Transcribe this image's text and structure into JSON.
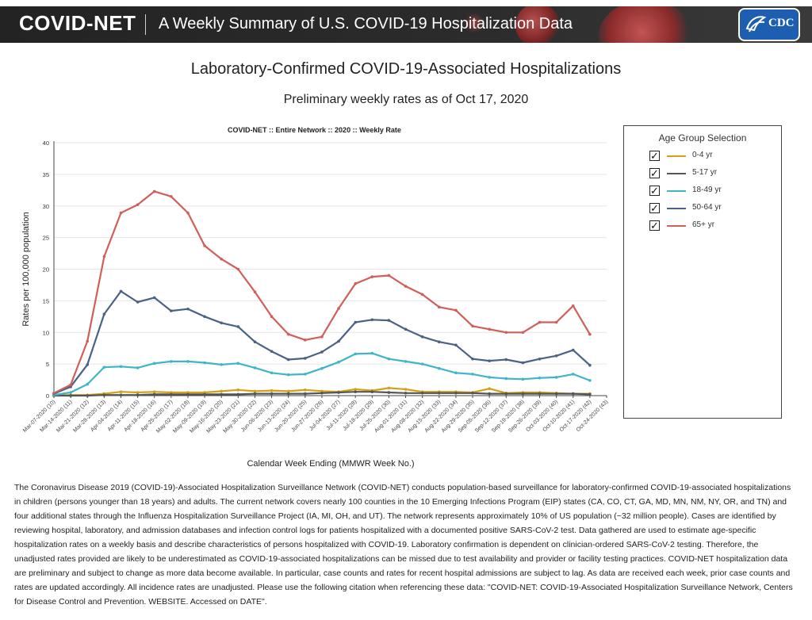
{
  "header": {
    "brand": "COVID-NET",
    "subtitle": "A Weekly Summary of U.S. COVID-19 Hospitalization Data",
    "logo_text": "CDC"
  },
  "page": {
    "title": "Laboratory-Confirmed COVID-19-Associated Hospitalizations",
    "subtitle": "Preliminary weekly rates as of Oct 17, 2020"
  },
  "legend": {
    "title": "Age Group Selection",
    "check_mark": "✓"
  },
  "description": "The Coronavirus Disease 2019 (COVID-19)-Associated Hospitalization Surveillance Network (COVID-NET) conducts population-based surveillance for laboratory-confirmed COVID-19-associated hospitalizations in children (persons younger than 18 years) and adults. The current network covers nearly 100 counties in the 10 Emerging Infections Program (EIP) states (CA, CO, CT, GA, MD, MN, NM, NY, OR, and TN) and four additional states through the Influenza Hospitalization Surveillance Project (IA, MI, OH, and UT). The network represents approximately 10% of US population (~32 million people). Cases are identified by reviewing hospital, laboratory, and admission databases and infection control logs for patients hospitalized with a documented positive SARS-CoV-2 test. Data gathered are used to estimate age-specific hospitalization rates on a weekly basis and describe characteristics of persons hospitalized with COVID-19. Laboratory confirmation is dependent on clinician-ordered SARS-CoV-2 testing. Therefore, the unadjusted rates provided are likely to be underestimated as COVID-19-associated hospitalizations can be missed due to test availability and provider or facility testing practices. COVID-NET hospitalization data are preliminary and subject to change as more data become available. In particular, case counts and rates for recent hospital admissions are subject to lag. As data are received each week, prior case counts and rates are updated accordingly. All incidence rates are unadjusted. Please use the following citation when referencing these data: \"COVID-NET: COVID-19-Associated Hospitalization Surveillance Network, Centers for Disease Control and Prevention. WEBSITE. Accessed on DATE\".",
  "chart_data": {
    "type": "line",
    "title": "COVID-NET :: Entire Network :: 2020 :: Weekly Rate",
    "xlabel": "Calendar Week Ending (MMWR Week No.)",
    "ylabel": "Rates per 100,000 population",
    "ylim": [
      0,
      40
    ],
    "yticks": [
      0,
      5,
      10,
      15,
      20,
      25,
      30,
      35,
      40
    ],
    "grid": true,
    "legend_position": "right",
    "categories": [
      "Mar-07-2020 (10)",
      "Mar-14-2020 (11)",
      "Mar-21-2020 (12)",
      "Mar-28-2020 (13)",
      "Apr-04-2020 (14)",
      "Apr-11-2020 (15)",
      "Apr-18-2020 (16)",
      "Apr-25-2020 (17)",
      "May-02-2020 (18)",
      "May-09-2020 (19)",
      "May-16-2020 (20)",
      "May-23-2020 (21)",
      "May-30-2020 (22)",
      "Jun-06-2020 (23)",
      "Jun-13-2020 (24)",
      "Jun-20-2020 (25)",
      "Jun-27-2020 (26)",
      "Jul-04-2020 (27)",
      "Jul-11-2020 (28)",
      "Jul-18-2020 (29)",
      "Jul-25-2020 (30)",
      "Aug-01-2020 (31)",
      "Aug-08-2020 (32)",
      "Aug-15-2020 (33)",
      "Aug-22-2020 (34)",
      "Aug-29-2020 (35)",
      "Sep-05-2020 (36)",
      "Sep-12-2020 (37)",
      "Sep-19-2020 (38)",
      "Sep-26-2020 (39)",
      "Oct-03-2020 (40)",
      "Oct-10-2020 (41)",
      "Oct-17-2020 (42)",
      "Oct-24-2020 (43)"
    ],
    "series": [
      {
        "name": "0-4 yr",
        "color": "#d4a017",
        "values": [
          0.0,
          0.1,
          0.1,
          0.3,
          0.6,
          0.5,
          0.6,
          0.5,
          0.5,
          0.5,
          0.7,
          0.9,
          0.7,
          0.8,
          0.7,
          0.9,
          0.7,
          0.6,
          1.0,
          0.8,
          1.2,
          1.0,
          0.6,
          0.6,
          0.6,
          0.5,
          1.1,
          0.4,
          0.5,
          0.5,
          0.4,
          0.3,
          0.3,
          null
        ]
      },
      {
        "name": "5-17 yr",
        "color": "#555555",
        "values": [
          0.0,
          0.0,
          0.0,
          0.1,
          0.1,
          0.1,
          0.2,
          0.2,
          0.2,
          0.2,
          0.2,
          0.2,
          0.3,
          0.3,
          0.3,
          0.3,
          0.4,
          0.5,
          0.6,
          0.6,
          0.5,
          0.4,
          0.4,
          0.4,
          0.4,
          0.4,
          0.3,
          0.3,
          0.3,
          0.3,
          0.3,
          0.3,
          0.2,
          null
        ]
      },
      {
        "name": "18-49 yr",
        "color": "#3fb5c8",
        "values": [
          0.1,
          0.5,
          1.8,
          4.5,
          4.6,
          4.4,
          5.1,
          5.4,
          5.4,
          5.2,
          4.9,
          5.1,
          4.4,
          3.6,
          3.3,
          3.4,
          4.3,
          5.3,
          6.6,
          6.7,
          5.8,
          5.4,
          5.0,
          4.3,
          3.6,
          3.4,
          2.9,
          2.7,
          2.6,
          2.8,
          2.9,
          3.4,
          2.4,
          null
        ]
      },
      {
        "name": "50-64 yr",
        "color": "#4a6285",
        "values": [
          0.3,
          1.4,
          4.9,
          12.9,
          16.5,
          14.8,
          15.5,
          13.4,
          13.7,
          12.5,
          11.5,
          10.9,
          8.5,
          7.0,
          5.7,
          5.9,
          6.9,
          8.6,
          11.6,
          12.0,
          11.9,
          10.5,
          9.3,
          8.5,
          8.0,
          5.8,
          5.5,
          5.7,
          5.2,
          5.8,
          6.3,
          7.2,
          4.8,
          null
        ]
      },
      {
        "name": "65+ yr",
        "color": "#d05f5a",
        "values": [
          0.4,
          1.7,
          8.6,
          22.0,
          28.9,
          30.2,
          32.3,
          31.5,
          28.9,
          23.7,
          21.6,
          20.0,
          16.4,
          12.5,
          9.7,
          8.8,
          9.3,
          13.8,
          17.7,
          18.8,
          19.0,
          17.3,
          16.0,
          14.0,
          13.5,
          11.0,
          10.5,
          10.0,
          10.0,
          11.6,
          11.6,
          14.2,
          9.7,
          null
        ]
      }
    ]
  }
}
